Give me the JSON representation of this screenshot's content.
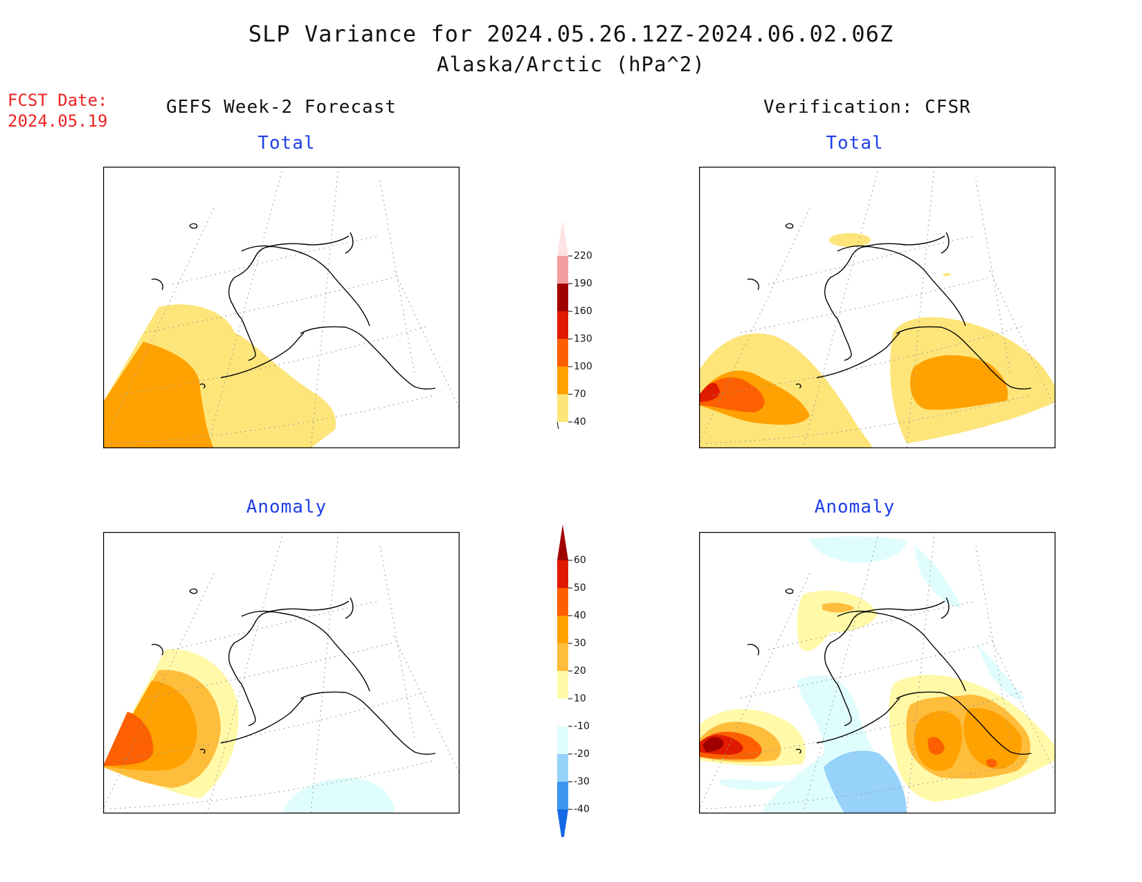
{
  "title": "SLP Variance for 2024.05.26.12Z-2024.06.02.06Z",
  "subtitle": "Alaska/Arctic (hPa^2)",
  "forecast_date": {
    "label": "FCST Date:",
    "value": "2024.05.19"
  },
  "columns": {
    "left": "GEFS Week-2 Forecast",
    "right": "Verification: CFSR"
  },
  "panels": {
    "forecast_total": "Total",
    "forecast_anomaly": "Anomaly",
    "verification_total": "Total",
    "verification_anomaly": "Anomaly"
  },
  "colors": {
    "coastline": "#000000",
    "graticule": "#9a9a9a",
    "frame": "#000000",
    "label_blue": "#1f3fe6",
    "fcst_red": "#ee2222"
  },
  "colorbars": {
    "total": {
      "levels": [
        "40",
        "70",
        "100",
        "130",
        "160",
        "190",
        "220"
      ],
      "colors": [
        "#fde57a",
        "#ffa100",
        "#fc6000",
        "#e01a00",
        "#a00000",
        "#f09e9e",
        "#fde3e3"
      ],
      "has_upper_triangle": true
    },
    "anomaly": {
      "levels": [
        "-40",
        "-30",
        "-20",
        "-10",
        "10",
        "20",
        "30",
        "40",
        "50",
        "60"
      ],
      "colors": [
        "#1469e6",
        "#3c96f0",
        "#96d2fa",
        "#e0fdfd",
        "#ffffff",
        "#fff9a8",
        "#ffbd3c",
        "#ffa100",
        "#fc6000",
        "#e01a00",
        "#a00000"
      ],
      "has_lower_triangle": true,
      "has_upper_triangle": true
    }
  }
}
